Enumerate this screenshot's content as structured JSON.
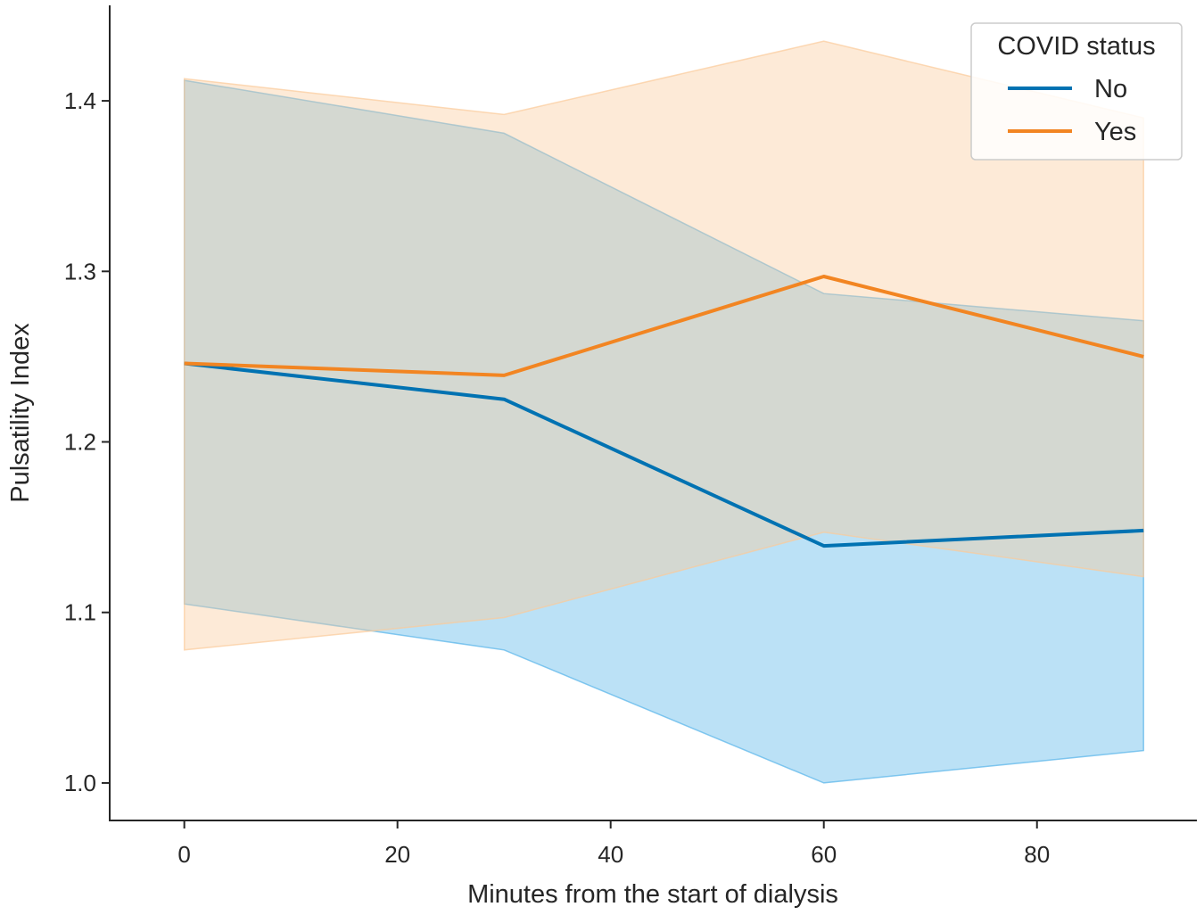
{
  "chart_data": {
    "type": "line",
    "title": "",
    "xlabel": "Minutes from the start of dialysis",
    "ylabel": "Pulsatility Index",
    "xlim": [
      -7,
      95
    ],
    "ylim": [
      0.978,
      1.456
    ],
    "x_ticks": [
      0,
      20,
      40,
      60,
      80
    ],
    "x_tick_labels": [
      "0",
      "20",
      "40",
      "60",
      "80"
    ],
    "y_ticks": [
      1.0,
      1.1,
      1.2,
      1.3,
      1.4
    ],
    "y_tick_labels": [
      "1.0",
      "1.1",
      "1.2",
      "1.3",
      "1.4"
    ],
    "grid": false,
    "legend": {
      "title": "COVID status",
      "position": "top-right"
    },
    "x": [
      0,
      30,
      60,
      90
    ],
    "series": [
      {
        "name": "No",
        "color": "#0072B2",
        "band_color": "#56B4E9",
        "values": [
          1.246,
          1.225,
          1.139,
          1.148
        ],
        "ci_lower": [
          1.105,
          1.078,
          1.0,
          1.019
        ],
        "ci_upper": [
          1.412,
          1.381,
          1.287,
          1.271
        ]
      },
      {
        "name": "Yes",
        "color": "#F28522",
        "band_color": "#FBCB9A",
        "values": [
          1.246,
          1.239,
          1.297,
          1.25
        ],
        "ci_lower": [
          1.078,
          1.097,
          1.147,
          1.121
        ],
        "ci_upper": [
          1.413,
          1.392,
          1.435,
          1.39
        ]
      }
    ]
  }
}
